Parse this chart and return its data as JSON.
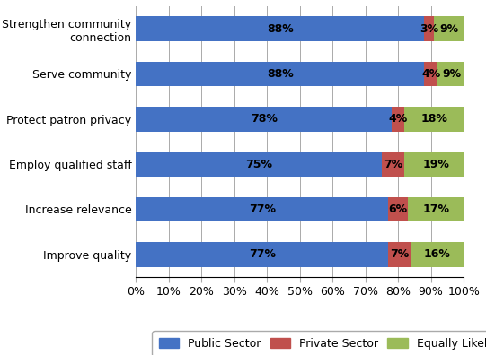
{
  "categories": [
    "Strengthen community\nconnection",
    "Serve community",
    "Protect patron privacy",
    "Employ qualified staff",
    "Increase relevance",
    "Improve quality"
  ],
  "public_sector": [
    88,
    88,
    78,
    75,
    77,
    77
  ],
  "private_sector": [
    3,
    4,
    4,
    7,
    6,
    7
  ],
  "equally_likely": [
    9,
    9,
    18,
    19,
    17,
    16
  ],
  "public_color": "#4472C4",
  "private_color": "#C0504D",
  "equally_color": "#9BBB59",
  "public_label": "Public Sector",
  "private_label": "Private Sector",
  "equally_label": "Equally Likely",
  "bar_height": 0.55,
  "xlim": [
    0,
    100
  ],
  "xtick_labels": [
    "0%",
    "10%",
    "20%",
    "30%",
    "40%",
    "50%",
    "60%",
    "70%",
    "80%",
    "90%",
    "100%"
  ],
  "xtick_values": [
    0,
    10,
    20,
    30,
    40,
    50,
    60,
    70,
    80,
    90,
    100
  ],
  "label_fontsize": 9,
  "tick_fontsize": 9,
  "legend_fontsize": 9,
  "background_color": "#FFFFFF"
}
